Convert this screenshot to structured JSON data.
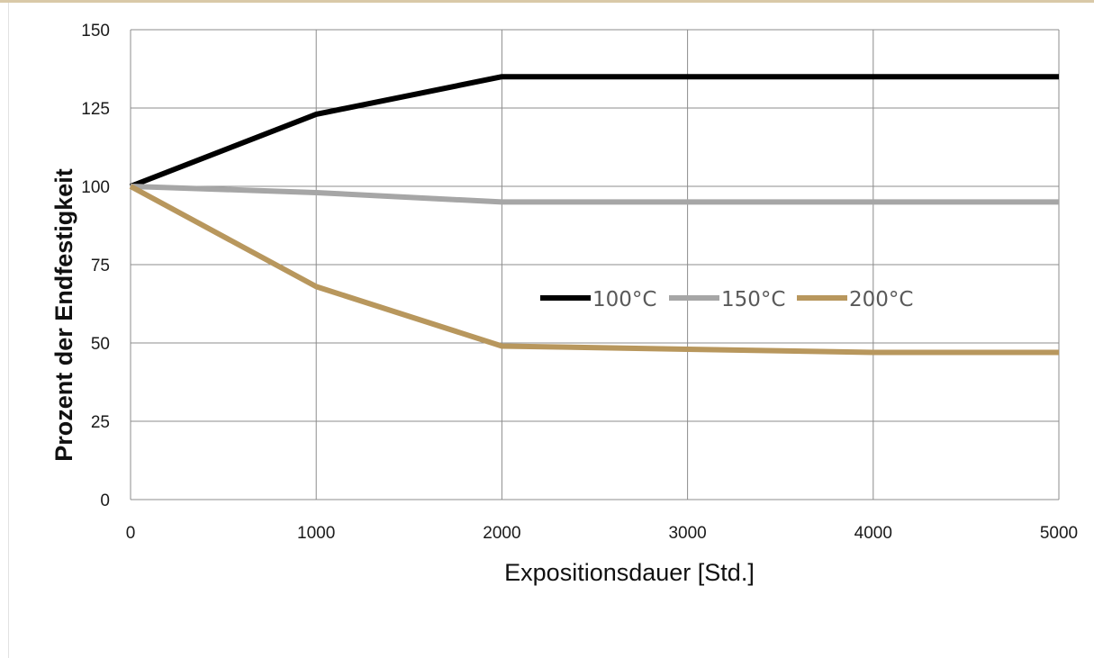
{
  "chart_data": {
    "type": "line",
    "title": "",
    "xlabel": "Expositionsdauer [Std.]",
    "ylabel": "Prozent der Endfestigkeit",
    "xlim": [
      0,
      5000
    ],
    "ylim": [
      0,
      150
    ],
    "x_ticks": [
      "0",
      "1000",
      "2000",
      "3000",
      "4000",
      "5000"
    ],
    "y_ticks": [
      "0",
      "25",
      "50",
      "75",
      "100",
      "125",
      "150"
    ],
    "grid": true,
    "legend_position": "center-right",
    "x": [
      0,
      1000,
      2000,
      3000,
      4000,
      5000
    ],
    "series": [
      {
        "name": "100°C",
        "color": "#000000",
        "values": [
          100,
          123,
          135,
          135,
          135,
          135
        ]
      },
      {
        "name": "150°C",
        "color": "#a6a6a6",
        "values": [
          100,
          98,
          95,
          95,
          95,
          95
        ]
      },
      {
        "name": "200°C",
        "color": "#b8975d",
        "values": [
          100,
          68,
          49,
          48,
          47,
          47
        ]
      }
    ]
  }
}
